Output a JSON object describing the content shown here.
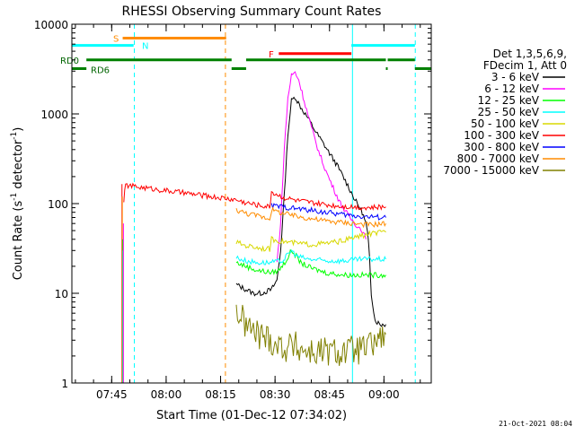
{
  "chart_data": {
    "type": "line",
    "title": "RHESSI Observing Summary Count Rates",
    "xlabel": "Start Time (01-Dec-12 07:34:02)",
    "ylabel": "Count Rate (s⁻¹ detector⁻¹)",
    "ylabel_main": "Count Rate (s",
    "ylabel_sup1": "-1",
    "ylabel_mid": " detector",
    "ylabel_sup2": "-1",
    "ylabel_end": ")",
    "x_ticks": [
      "07:45",
      "08:00",
      "08:15",
      "08:30",
      "08:45",
      "09:00"
    ],
    "y_ticks": [
      "1",
      "10",
      "100",
      "1000",
      "10000"
    ],
    "xlim_minutes": [
      0,
      99
    ],
    "ylim_log": [
      1,
      10000
    ],
    "y_scale": "log",
    "timestamp": "21-Oct-2021 08:04",
    "legend_header": [
      "Det 1,3,5,6,9,",
      "FDecim 1, Att 0"
    ],
    "legend_position": "right",
    "series": [
      {
        "name": "3 - 6 keV",
        "color": "#000000",
        "points": [
          [
            45.3,
            12.5
          ],
          [
            48,
            11
          ],
          [
            50,
            10
          ],
          [
            52,
            10
          ],
          [
            55,
            11
          ],
          [
            56.5,
            14
          ],
          [
            57.5,
            30
          ],
          [
            58.5,
            120
          ],
          [
            59.5,
            600
          ],
          [
            60.5,
            1400
          ],
          [
            61.5,
            1550
          ],
          [
            63,
            1200
          ],
          [
            65,
            900
          ],
          [
            67,
            650
          ],
          [
            70,
            420
          ],
          [
            73,
            270
          ],
          [
            76,
            160
          ],
          [
            78,
            110
          ],
          [
            80,
            80
          ],
          [
            81,
            60
          ],
          [
            81.5,
            45
          ],
          [
            82,
            25
          ],
          [
            82.5,
            10
          ],
          [
            83.5,
            5
          ],
          [
            85,
            4.5
          ],
          [
            86.5,
            4.5
          ]
        ]
      },
      {
        "name": "6 - 12 keV",
        "color": "#ff00ff",
        "points": [
          [
            56.5,
            22
          ],
          [
            57.5,
            60
          ],
          [
            58.5,
            400
          ],
          [
            59.5,
            1500
          ],
          [
            60.5,
            2700
          ],
          [
            61.5,
            2900
          ],
          [
            62.5,
            2400
          ],
          [
            64,
            1400
          ],
          [
            66,
            700
          ],
          [
            68,
            380
          ],
          [
            70,
            230
          ],
          [
            72,
            150
          ],
          [
            74,
            100
          ],
          [
            76,
            75
          ],
          [
            78,
            60
          ],
          [
            80,
            50
          ],
          [
            81,
            40
          ]
        ]
      },
      {
        "name": "12 - 25 keV",
        "color": "#00ff00",
        "points": [
          [
            45.3,
            22
          ],
          [
            48,
            20
          ],
          [
            51,
            18
          ],
          [
            55,
            17
          ],
          [
            57,
            18
          ],
          [
            59,
            23
          ],
          [
            60.5,
            30
          ],
          [
            61.5,
            27
          ],
          [
            63,
            22
          ],
          [
            66,
            19
          ],
          [
            70,
            17
          ],
          [
            75,
            16
          ],
          [
            80,
            16
          ],
          [
            84,
            16
          ],
          [
            86.5,
            16
          ]
        ]
      },
      {
        "name": "25 - 50 keV",
        "color": "#00ffff",
        "points": [
          [
            45.3,
            25
          ],
          [
            48,
            23
          ],
          [
            51,
            22
          ],
          [
            55,
            22
          ],
          [
            58,
            23
          ],
          [
            60.5,
            30
          ],
          [
            62,
            26
          ],
          [
            65,
            24
          ],
          [
            70,
            23
          ],
          [
            75,
            23
          ],
          [
            80,
            24
          ],
          [
            84,
            24
          ],
          [
            86.5,
            24
          ]
        ]
      },
      {
        "name": "50 - 100 keV",
        "color": "#d8d800",
        "points": [
          [
            45.3,
            37
          ],
          [
            48,
            34
          ],
          [
            52,
            32
          ],
          [
            54.5,
            31
          ],
          [
            55,
            40
          ],
          [
            58,
            38
          ],
          [
            62,
            36
          ],
          [
            66,
            35
          ],
          [
            70,
            36
          ],
          [
            74,
            38
          ],
          [
            78,
            42
          ],
          [
            82,
            46
          ],
          [
            86.5,
            48
          ]
        ]
      },
      {
        "name": "100 - 300 keV",
        "color": "#ff0000",
        "points": [
          [
            14.3,
            110
          ],
          [
            14.8,
            160
          ],
          [
            45.3,
            110
          ],
          [
            48,
            102
          ],
          [
            52,
            95
          ],
          [
            54.5,
            92
          ],
          [
            55,
            135
          ],
          [
            58,
            118
          ],
          [
            62,
            108
          ],
          [
            66,
            102
          ],
          [
            70,
            97
          ],
          [
            74,
            94
          ],
          [
            78,
            92
          ],
          [
            82,
            90
          ],
          [
            86.5,
            92
          ]
        ]
      },
      {
        "name": "300 - 800 keV",
        "color": "#0000ff",
        "points": [
          [
            55,
            95
          ],
          [
            60,
            90
          ],
          [
            65,
            85
          ],
          [
            70,
            80
          ],
          [
            75,
            75
          ],
          [
            80,
            72
          ],
          [
            86.5,
            70
          ]
        ]
      },
      {
        "name": "800 - 7000 keV",
        "color": "#ff8c00",
        "points": [
          [
            45.3,
            85
          ],
          [
            48,
            78
          ],
          [
            52,
            72
          ],
          [
            54.5,
            68
          ],
          [
            55,
            85
          ],
          [
            58,
            78
          ],
          [
            62,
            72
          ],
          [
            66,
            68
          ],
          [
            70,
            64
          ],
          [
            74,
            62
          ],
          [
            78,
            60
          ],
          [
            82,
            58
          ],
          [
            86.5,
            60
          ]
        ]
      },
      {
        "name": "7000 - 15000 keV",
        "color": "#808000",
        "points": [
          [
            45.3,
            6.5
          ],
          [
            47,
            5
          ],
          [
            49,
            4
          ],
          [
            51,
            3.5
          ],
          [
            53,
            3.3
          ],
          [
            55,
            3
          ],
          [
            57,
            2.6
          ],
          [
            59,
            2.5
          ],
          [
            61,
            2.6
          ],
          [
            63,
            2.4
          ],
          [
            66,
            2.2
          ],
          [
            70,
            2.2
          ],
          [
            74,
            2.2
          ],
          [
            78,
            2.3
          ],
          [
            81,
            2.4
          ],
          [
            82,
            2.5
          ],
          [
            84,
            3
          ],
          [
            86.5,
            3.5
          ]
        ]
      }
    ],
    "flags": [
      {
        "label": "S",
        "color": "#ff8c00",
        "value": 7000,
        "segments": [
          [
            14,
            42.5
          ]
        ]
      },
      {
        "label": "N",
        "color": "#00ffff",
        "value": 5800,
        "segments": [
          [
            0,
            17
          ],
          [
            77,
            94.5
          ]
        ]
      },
      {
        "label": "F",
        "color": "#ff0000",
        "value": 4700,
        "segments": [
          [
            57,
            77
          ]
        ]
      },
      {
        "label": "RD0",
        "color": "#008000",
        "value": 4000,
        "segments": [
          [
            4,
            44
          ],
          [
            48,
            86.5
          ],
          [
            87,
            94.5
          ]
        ]
      },
      {
        "label": "RD6",
        "color": "#008000",
        "value": 3200,
        "segments": [
          [
            0,
            4
          ],
          [
            44,
            48
          ],
          [
            86.5,
            87
          ],
          [
            94.5,
            99
          ]
        ]
      }
    ],
    "vlines": [
      {
        "color": "#00ffff",
        "style": "solid",
        "x": 0
      },
      {
        "color": "#00ffff",
        "style": "dashed",
        "x": 17.2
      },
      {
        "color": "#ff8c00",
        "style": "dashed",
        "x": 42.3
      },
      {
        "color": "#00ffff",
        "style": "solid",
        "x": 77.3
      },
      {
        "color": "#00ffff",
        "style": "dashed",
        "x": 94.6
      }
    ]
  }
}
